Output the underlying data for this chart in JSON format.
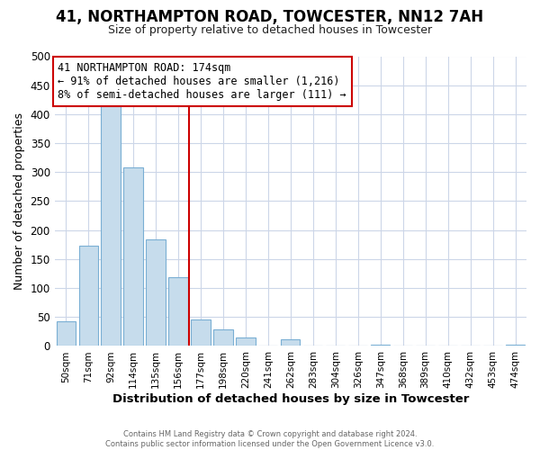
{
  "title": "41, NORTHAMPTON ROAD, TOWCESTER, NN12 7AH",
  "subtitle": "Size of property relative to detached houses in Towcester",
  "xlabel": "Distribution of detached houses by size in Towcester",
  "ylabel": "Number of detached properties",
  "bar_labels": [
    "50sqm",
    "71sqm",
    "92sqm",
    "114sqm",
    "135sqm",
    "156sqm",
    "177sqm",
    "198sqm",
    "220sqm",
    "241sqm",
    "262sqm",
    "283sqm",
    "304sqm",
    "326sqm",
    "347sqm",
    "368sqm",
    "389sqm",
    "410sqm",
    "432sqm",
    "453sqm",
    "474sqm"
  ],
  "bar_values": [
    43,
    173,
    415,
    308,
    184,
    118,
    46,
    28,
    14,
    0,
    12,
    0,
    0,
    0,
    3,
    0,
    0,
    0,
    0,
    0,
    2
  ],
  "bar_color": "#c6dcec",
  "bar_edge_color": "#7aafd4",
  "vline_x_index": 6,
  "vline_color": "#cc0000",
  "annotation_title": "41 NORTHAMPTON ROAD: 174sqm",
  "annotation_line1": "← 91% of detached houses are smaller (1,216)",
  "annotation_line2": "8% of semi-detached houses are larger (111) →",
  "annotation_box_edge": "#cc0000",
  "ylim": [
    0,
    500
  ],
  "yticks": [
    0,
    50,
    100,
    150,
    200,
    250,
    300,
    350,
    400,
    450,
    500
  ],
  "footer_line1": "Contains HM Land Registry data © Crown copyright and database right 2024.",
  "footer_line2": "Contains public sector information licensed under the Open Government Licence v3.0.",
  "bg_color": "#ffffff",
  "grid_color": "#ccd6e8",
  "title_fontsize": 12,
  "subtitle_fontsize": 9
}
